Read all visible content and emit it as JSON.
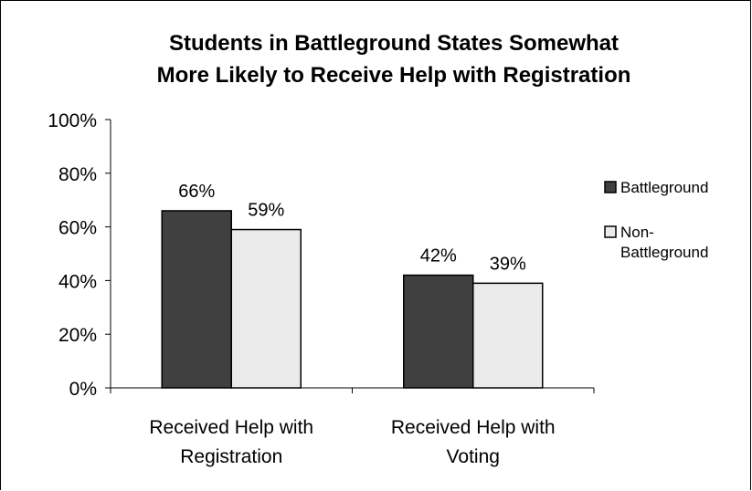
{
  "chart_data": {
    "type": "bar",
    "title_lines": [
      "Students in Battleground States Somewhat",
      "More Likely to Receive Help with Registration"
    ],
    "categories": [
      [
        "Received Help with",
        "Registration"
      ],
      [
        "Received Help with",
        "Voting"
      ]
    ],
    "series": [
      {
        "name": "Battleground",
        "name_lines": [
          "Battleground"
        ],
        "values": [
          66,
          42
        ],
        "color": "#404040"
      },
      {
        "name": "Non-Battleground",
        "name_lines": [
          "Non-",
          "Battleground"
        ],
        "values": [
          59,
          39
        ],
        "color": "#eaeaea"
      }
    ],
    "data_labels": [
      [
        "66%",
        "42%"
      ],
      [
        "59%",
        "39%"
      ]
    ],
    "ylim": [
      0,
      100
    ],
    "yticks": [
      "0%",
      "20%",
      "40%",
      "60%",
      "80%",
      "100%"
    ],
    "grid": false,
    "legend_position": "right"
  }
}
